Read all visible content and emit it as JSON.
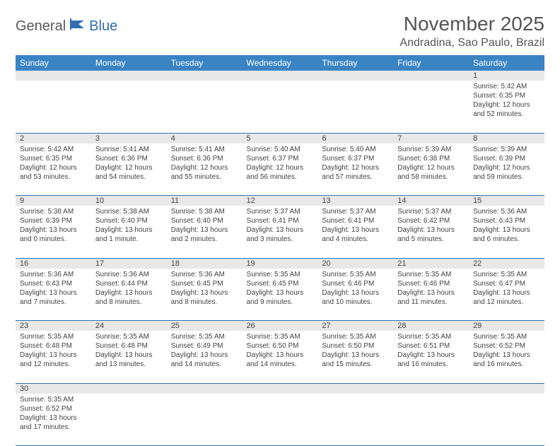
{
  "logo": {
    "part1": "General",
    "part2": "Blue"
  },
  "title": "November 2025",
  "location": "Andradina, Sao Paulo, Brazil",
  "colors": {
    "header_bg": "#3b84c4",
    "header_text": "#ffffff",
    "daynum_bg": "#e8e8e8",
    "border": "#2f6fb0",
    "text": "#444444",
    "logo_gray": "#5a5a5a",
    "logo_blue": "#2f6fb0"
  },
  "day_headers": [
    "Sunday",
    "Monday",
    "Tuesday",
    "Wednesday",
    "Thursday",
    "Friday",
    "Saturday"
  ],
  "weeks": [
    {
      "nums": [
        "",
        "",
        "",
        "",
        "",
        "",
        "1"
      ],
      "cells": [
        null,
        null,
        null,
        null,
        null,
        null,
        {
          "sunrise": "Sunrise: 5:42 AM",
          "sunset": "Sunset: 6:35 PM",
          "daylight": "Daylight: 12 hours and 52 minutes."
        }
      ]
    },
    {
      "nums": [
        "2",
        "3",
        "4",
        "5",
        "6",
        "7",
        "8"
      ],
      "cells": [
        {
          "sunrise": "Sunrise: 5:42 AM",
          "sunset": "Sunset: 6:35 PM",
          "daylight": "Daylight: 12 hours and 53 minutes."
        },
        {
          "sunrise": "Sunrise: 5:41 AM",
          "sunset": "Sunset: 6:36 PM",
          "daylight": "Daylight: 12 hours and 54 minutes."
        },
        {
          "sunrise": "Sunrise: 5:41 AM",
          "sunset": "Sunset: 6:36 PM",
          "daylight": "Daylight: 12 hours and 55 minutes."
        },
        {
          "sunrise": "Sunrise: 5:40 AM",
          "sunset": "Sunset: 6:37 PM",
          "daylight": "Daylight: 12 hours and 56 minutes."
        },
        {
          "sunrise": "Sunrise: 5:40 AM",
          "sunset": "Sunset: 6:37 PM",
          "daylight": "Daylight: 12 hours and 57 minutes."
        },
        {
          "sunrise": "Sunrise: 5:39 AM",
          "sunset": "Sunset: 6:38 PM",
          "daylight": "Daylight: 12 hours and 58 minutes."
        },
        {
          "sunrise": "Sunrise: 5:39 AM",
          "sunset": "Sunset: 6:39 PM",
          "daylight": "Daylight: 12 hours and 59 minutes."
        }
      ]
    },
    {
      "nums": [
        "9",
        "10",
        "11",
        "12",
        "13",
        "14",
        "15"
      ],
      "cells": [
        {
          "sunrise": "Sunrise: 5:38 AM",
          "sunset": "Sunset: 6:39 PM",
          "daylight": "Daylight: 13 hours and 0 minutes."
        },
        {
          "sunrise": "Sunrise: 5:38 AM",
          "sunset": "Sunset: 6:40 PM",
          "daylight": "Daylight: 13 hours and 1 minute."
        },
        {
          "sunrise": "Sunrise: 5:38 AM",
          "sunset": "Sunset: 6:40 PM",
          "daylight": "Daylight: 13 hours and 2 minutes."
        },
        {
          "sunrise": "Sunrise: 5:37 AM",
          "sunset": "Sunset: 6:41 PM",
          "daylight": "Daylight: 13 hours and 3 minutes."
        },
        {
          "sunrise": "Sunrise: 5:37 AM",
          "sunset": "Sunset: 6:41 PM",
          "daylight": "Daylight: 13 hours and 4 minutes."
        },
        {
          "sunrise": "Sunrise: 5:37 AM",
          "sunset": "Sunset: 6:42 PM",
          "daylight": "Daylight: 13 hours and 5 minutes."
        },
        {
          "sunrise": "Sunrise: 5:36 AM",
          "sunset": "Sunset: 6:43 PM",
          "daylight": "Daylight: 13 hours and 6 minutes."
        }
      ]
    },
    {
      "nums": [
        "16",
        "17",
        "18",
        "19",
        "20",
        "21",
        "22"
      ],
      "cells": [
        {
          "sunrise": "Sunrise: 5:36 AM",
          "sunset": "Sunset: 6:43 PM",
          "daylight": "Daylight: 13 hours and 7 minutes."
        },
        {
          "sunrise": "Sunrise: 5:36 AM",
          "sunset": "Sunset: 6:44 PM",
          "daylight": "Daylight: 13 hours and 8 minutes."
        },
        {
          "sunrise": "Sunrise: 5:36 AM",
          "sunset": "Sunset: 6:45 PM",
          "daylight": "Daylight: 13 hours and 8 minutes."
        },
        {
          "sunrise": "Sunrise: 5:35 AM",
          "sunset": "Sunset: 6:45 PM",
          "daylight": "Daylight: 13 hours and 9 minutes."
        },
        {
          "sunrise": "Sunrise: 5:35 AM",
          "sunset": "Sunset: 6:46 PM",
          "daylight": "Daylight: 13 hours and 10 minutes."
        },
        {
          "sunrise": "Sunrise: 5:35 AM",
          "sunset": "Sunset: 6:46 PM",
          "daylight": "Daylight: 13 hours and 11 minutes."
        },
        {
          "sunrise": "Sunrise: 5:35 AM",
          "sunset": "Sunset: 6:47 PM",
          "daylight": "Daylight: 13 hours and 12 minutes."
        }
      ]
    },
    {
      "nums": [
        "23",
        "24",
        "25",
        "26",
        "27",
        "28",
        "29"
      ],
      "cells": [
        {
          "sunrise": "Sunrise: 5:35 AM",
          "sunset": "Sunset: 6:48 PM",
          "daylight": "Daylight: 13 hours and 12 minutes."
        },
        {
          "sunrise": "Sunrise: 5:35 AM",
          "sunset": "Sunset: 6:48 PM",
          "daylight": "Daylight: 13 hours and 13 minutes."
        },
        {
          "sunrise": "Sunrise: 5:35 AM",
          "sunset": "Sunset: 6:49 PM",
          "daylight": "Daylight: 13 hours and 14 minutes."
        },
        {
          "sunrise": "Sunrise: 5:35 AM",
          "sunset": "Sunset: 6:50 PM",
          "daylight": "Daylight: 13 hours and 14 minutes."
        },
        {
          "sunrise": "Sunrise: 5:35 AM",
          "sunset": "Sunset: 6:50 PM",
          "daylight": "Daylight: 13 hours and 15 minutes."
        },
        {
          "sunrise": "Sunrise: 5:35 AM",
          "sunset": "Sunset: 6:51 PM",
          "daylight": "Daylight: 13 hours and 16 minutes."
        },
        {
          "sunrise": "Sunrise: 5:35 AM",
          "sunset": "Sunset: 6:52 PM",
          "daylight": "Daylight: 13 hours and 16 minutes."
        }
      ]
    },
    {
      "nums": [
        "30",
        "",
        "",
        "",
        "",
        "",
        ""
      ],
      "cells": [
        {
          "sunrise": "Sunrise: 5:35 AM",
          "sunset": "Sunset: 6:52 PM",
          "daylight": "Daylight: 13 hours and 17 minutes."
        },
        null,
        null,
        null,
        null,
        null,
        null
      ]
    }
  ]
}
